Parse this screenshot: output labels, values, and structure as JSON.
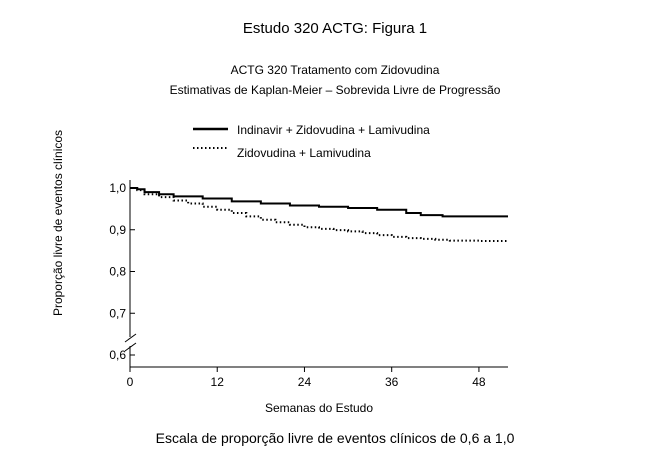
{
  "figure": {
    "title": "Estudo 320 ACTG: Figura 1",
    "subtitle_line1": "ACTG 320 Tratamento com Zidovudina",
    "subtitle_line2": "Estimativas de Kaplan-Meier – Sobrevida Livre de Progressão",
    "caption": "Escala de proporção livre de eventos clínicos de 0,6 a 1,0"
  },
  "chart_data": {
    "type": "line",
    "xlabel": "Semanas do Estudo",
    "ylabel": "Proporção livre de eventos clínicos",
    "xlim": [
      0,
      52
    ],
    "ylim": [
      0.6,
      1.0
    ],
    "x_ticks": [
      0,
      12,
      24,
      36,
      48
    ],
    "x_tick_labels": [
      "0",
      "12",
      "24",
      "36",
      "48"
    ],
    "y_ticks": [
      0.6,
      0.7,
      0.8,
      0.9,
      1.0
    ],
    "y_tick_labels": [
      "0,6",
      "0,7",
      "0,8",
      "0,9",
      "1,0"
    ],
    "axis_break": true,
    "grid": false,
    "legend_position": "top",
    "series": [
      {
        "name": "Indinavir + Zidovudina + Lamivudina",
        "style": "solid",
        "color": "#000000",
        "points": [
          [
            0,
            1.0
          ],
          [
            1,
            0.997
          ],
          [
            2,
            0.99
          ],
          [
            4,
            0.985
          ],
          [
            6,
            0.98
          ],
          [
            10,
            0.975
          ],
          [
            14,
            0.968
          ],
          [
            18,
            0.963
          ],
          [
            22,
            0.958
          ],
          [
            26,
            0.955
          ],
          [
            30,
            0.952
          ],
          [
            34,
            0.948
          ],
          [
            38,
            0.94
          ],
          [
            40,
            0.935
          ],
          [
            43,
            0.932
          ],
          [
            52,
            0.932
          ]
        ]
      },
      {
        "name": "Zidovudina + Lamivudina",
        "style": "dotted",
        "color": "#000000",
        "points": [
          [
            0,
            1.0
          ],
          [
            1,
            0.995
          ],
          [
            2,
            0.985
          ],
          [
            4,
            0.978
          ],
          [
            6,
            0.97
          ],
          [
            8,
            0.963
          ],
          [
            10,
            0.955
          ],
          [
            12,
            0.948
          ],
          [
            14,
            0.94
          ],
          [
            16,
            0.932
          ],
          [
            18,
            0.924
          ],
          [
            20,
            0.918
          ],
          [
            22,
            0.912
          ],
          [
            24,
            0.906
          ],
          [
            26,
            0.902
          ],
          [
            28,
            0.899
          ],
          [
            30,
            0.896
          ],
          [
            32,
            0.892
          ],
          [
            34,
            0.887
          ],
          [
            36,
            0.883
          ],
          [
            38,
            0.88
          ],
          [
            40,
            0.878
          ],
          [
            42,
            0.876
          ],
          [
            44,
            0.874
          ],
          [
            48,
            0.873
          ],
          [
            52,
            0.873
          ]
        ]
      }
    ]
  }
}
